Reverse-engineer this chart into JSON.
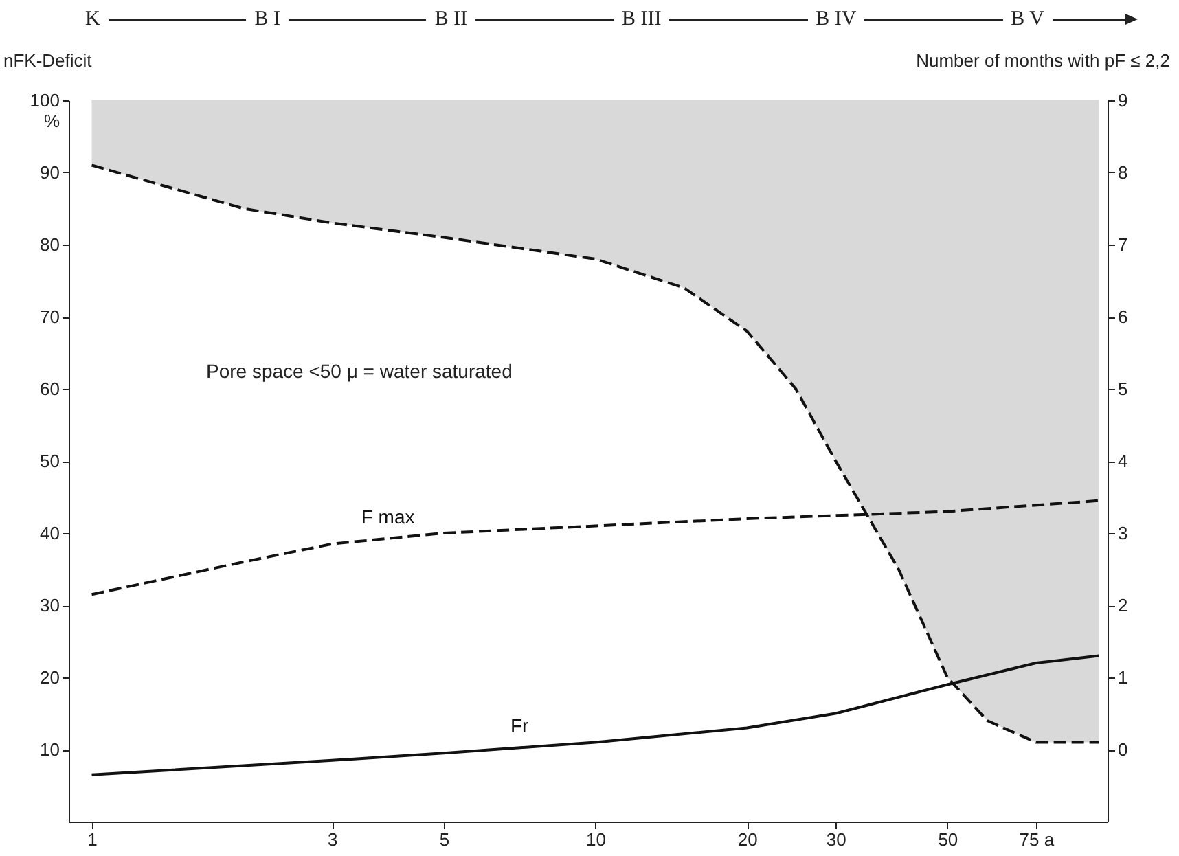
{
  "chart_data": {
    "type": "line",
    "ylabel": "nFK-Deficit",
    "y2label": "Number of months with pF ≤ 2,2",
    "annotations": [
      "K",
      "B I",
      "B II",
      "B III",
      "B IV",
      "B V",
      "Pore space <50 μ = water saturated"
    ],
    "log": "x",
    "xlim": [
      0.9,
      104
    ],
    "xticks": [
      1,
      3,
      5,
      10,
      20,
      30,
      50,
      {
        "value": 75,
        "label": "75 a"
      }
    ],
    "ylim": [
      0,
      100
    ],
    "yticks": [
      10,
      20,
      30,
      40,
      50,
      60,
      70,
      80,
      90,
      {
        "value": 100,
        "label": "100\n%"
      }
    ],
    "y2lim": [
      -1,
      9
    ],
    "y2ticks": [
      0,
      1,
      2,
      3,
      4,
      5,
      6,
      7,
      8,
      9
    ],
    "series": [
      {
        "axis": "y2",
        "color": "#111111",
        "line_style": "dashed",
        "x": [
          1,
          2,
          3,
          5,
          10,
          15,
          20,
          25,
          30,
          40,
          50,
          60,
          75,
          100
        ],
        "values": [
          8.1,
          7.5,
          7.3,
          7.1,
          6.8,
          6.4,
          5.8,
          5.0,
          4.0,
          2.5,
          1.0,
          0.4,
          0.1,
          0.1
        ],
        "lower": [
          8.1,
          7.5,
          7.3,
          7.1,
          6.8,
          6.4,
          5.8,
          5.0,
          4.0,
          2.5,
          1.0,
          0.4,
          0.1,
          0.1
        ],
        "upper": [
          9,
          9,
          9,
          9,
          9,
          9,
          9,
          9,
          9,
          9,
          9,
          9,
          9,
          9
        ]
      },
      {
        "name": "F max",
        "color": "#111111",
        "line_style": "dashed",
        "x": [
          1,
          2,
          3,
          5,
          10,
          20,
          50,
          100
        ],
        "values": [
          31.5,
          36,
          38.5,
          40,
          41,
          42,
          43,
          44.5
        ]
      },
      {
        "name": "Fr",
        "color": "#111111",
        "line_style": "solid",
        "x": [
          1,
          3,
          5,
          10,
          20,
          30,
          50,
          75,
          100
        ],
        "values": [
          6.5,
          8.5,
          9.5,
          11,
          13,
          15,
          19,
          22,
          23
        ]
      }
    ]
  }
}
